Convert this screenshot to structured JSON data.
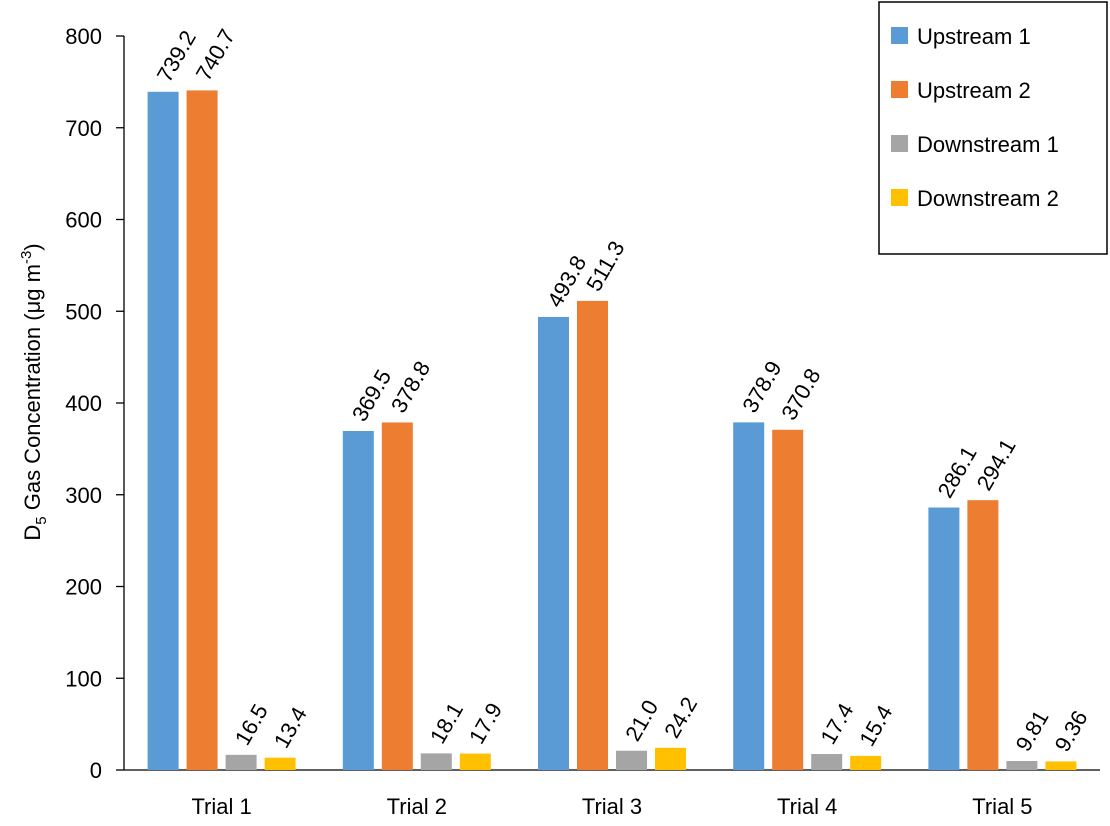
{
  "chart_data": {
    "type": "bar",
    "categories": [
      "Trial 1",
      "Trial 2",
      "Trial 3",
      "Trial 4",
      "Trial 5"
    ],
    "series": [
      {
        "name": "Upstream 1",
        "color": "#5B9BD5",
        "values": [
          739.2,
          369.5,
          493.8,
          378.9,
          286.1
        ],
        "labels": [
          "739.2",
          "369.5",
          "493.8",
          "378.9",
          "286.1"
        ]
      },
      {
        "name": "Upstream 2",
        "color": "#ED7D31",
        "values": [
          740.7,
          378.8,
          511.3,
          370.8,
          294.1
        ],
        "labels": [
          "740.7",
          "378.8",
          "511.3",
          "370.8",
          "294.1"
        ]
      },
      {
        "name": "Downstream 1",
        "color": "#A5A5A5",
        "values": [
          16.5,
          18.1,
          21.0,
          17.4,
          9.81
        ],
        "labels": [
          "16.5",
          "18.1",
          "21.0",
          "17.4",
          "9.81"
        ]
      },
      {
        "name": "Downstream 2",
        "color": "#FFC000",
        "values": [
          13.4,
          17.9,
          24.2,
          15.4,
          9.36
        ],
        "labels": [
          "13.4",
          "17.9",
          "24.2",
          "15.4",
          "9.36"
        ]
      }
    ],
    "ylabel": {
      "main": "D",
      "sub": "5",
      "rest": " Gas Concentration (μg m",
      "sup": "-3",
      "end": ")"
    },
    "xlabel": "",
    "ylim": [
      0,
      800
    ],
    "yticks": [
      "0",
      "100",
      "200",
      "300",
      "400",
      "500",
      "600",
      "700",
      "800"
    ],
    "grid": false,
    "legend_position": "top-right"
  }
}
